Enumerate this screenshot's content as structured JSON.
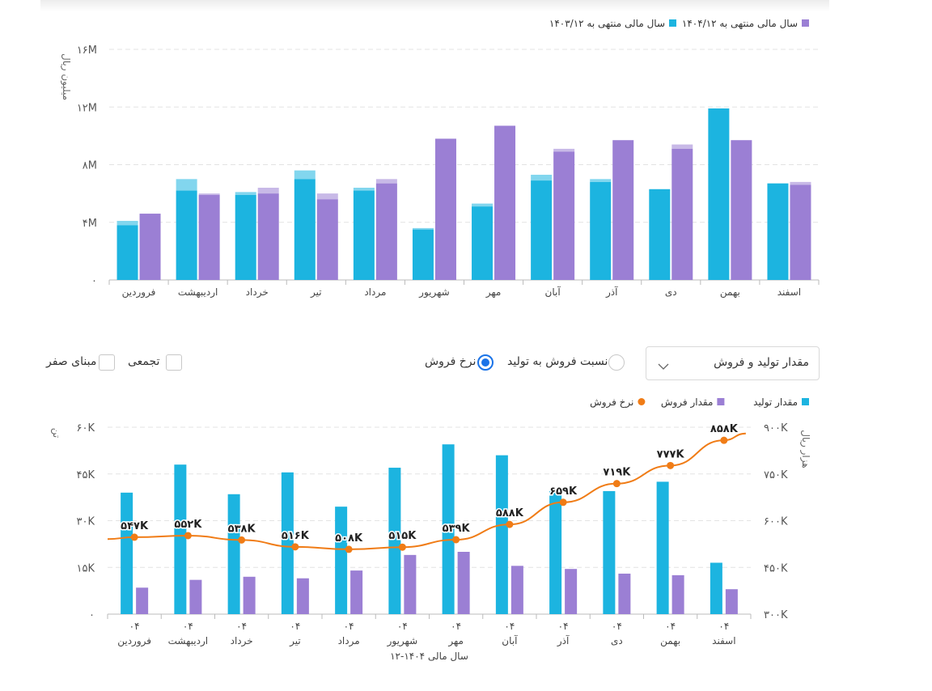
{
  "chart_data": [
    {
      "type": "bar",
      "ylabel": "میلیون ریال",
      "yticks": [
        "۰",
        "۴M",
        "۸M",
        "۱۲M",
        "۱۶M"
      ],
      "ylim": [
        0,
        16
      ],
      "categories": [
        "فروردین",
        "اردیبهشت",
        "خرداد",
        "تیر",
        "مرداد",
        "شهریور",
        "مهر",
        "آبان",
        "آذر",
        "دی",
        "بهمن",
        "اسفند"
      ],
      "legend_position": "top-right",
      "series": [
        {
          "name": "سال مالی منتهی به ۱۴۰۳/۱۲",
          "color": "#1cb4e0",
          "values": [
            3.8,
            6.2,
            5.9,
            7.0,
            6.2,
            3.5,
            5.1,
            6.9,
            6.8,
            6.3,
            11.9,
            6.7
          ],
          "overlay": [
            0.3,
            0.8,
            0.2,
            0.6,
            0.2,
            0.1,
            0.2,
            0.4,
            0.2,
            0.0,
            0.0,
            0.0
          ]
        },
        {
          "name": "سال مالی منتهی به ۱۴۰۴/۱۲",
          "color": "#9b7fd4",
          "values": [
            4.6,
            5.9,
            6.0,
            5.6,
            6.7,
            9.8,
            10.7,
            8.9,
            9.7,
            9.1,
            9.7,
            6.6
          ],
          "overlay": [
            0.0,
            0.1,
            0.4,
            0.4,
            0.3,
            0.0,
            0.0,
            0.2,
            0.0,
            0.3,
            0.0,
            0.2
          ]
        }
      ]
    },
    {
      "type": "bar",
      "xlabel": "سال مالی ۱۴۰۴-۱۲",
      "ylabel": "تن",
      "ylabel_right": "هزار ریال",
      "yticks": [
        "۰",
        "۱۵K",
        "۳۰K",
        "۴۵K",
        "۶۰K"
      ],
      "yticks_right": [
        "۳۰۰K",
        "۴۵۰K",
        "۶۰۰K",
        "۷۵۰K",
        "۹۰۰K"
      ],
      "ylim": [
        0,
        60
      ],
      "ylim_right": [
        300,
        900
      ],
      "categories": [
        "فروردین",
        "اردیبهشت",
        "خرداد",
        "تیر",
        "مرداد",
        "شهریور",
        "مهر",
        "آبان",
        "آذر",
        "دی",
        "بهمن",
        "اسفند"
      ],
      "year_labels": [
        "۰۴",
        "۰۴",
        "۰۴",
        "۰۴",
        "۰۴",
        "۰۴",
        "۰۴",
        "۰۴",
        "۰۴",
        "۰۴",
        "۰۴",
        "۰۴"
      ],
      "legend_position": "top-right",
      "series": [
        {
          "name": "مقدار تولید",
          "color": "#1cb4e0",
          "values": [
            39,
            48,
            38.5,
            45.5,
            34.5,
            47,
            54.5,
            51,
            39.5,
            39.5,
            42.5,
            16.5
          ]
        },
        {
          "name": "مقدار فروش",
          "color": "#9b7fd4",
          "values": [
            8.5,
            11,
            12,
            11.5,
            14,
            19,
            20,
            15.5,
            14.5,
            13,
            12.5,
            8
          ]
        },
        {
          "name": "نرخ فروش",
          "color": "#f07c16",
          "type": "line",
          "axis": "right",
          "values": [
            547,
            552,
            538,
            516,
            508,
            515,
            539,
            588,
            659,
            719,
            777,
            858
          ],
          "labels": [
            "۵۴۷K",
            "۵۵۲K",
            "۵۳۸K",
            "۵۱۶K",
            "۵۰۸K",
            "۵۱۵K",
            "۵۳۹K",
            "۵۸۸K",
            "۶۵۹K",
            "۷۱۹K",
            "۷۷۷K",
            "۸۵۸K"
          ]
        }
      ]
    }
  ],
  "controls": {
    "dropdown_value": "مقدار تولید و فروش",
    "radio_ratio": "نسبت فروش به تولید",
    "radio_rate": "نرخ فروش",
    "check_cumulative": "تجمعی",
    "check_zero": "مبنای صفر"
  }
}
